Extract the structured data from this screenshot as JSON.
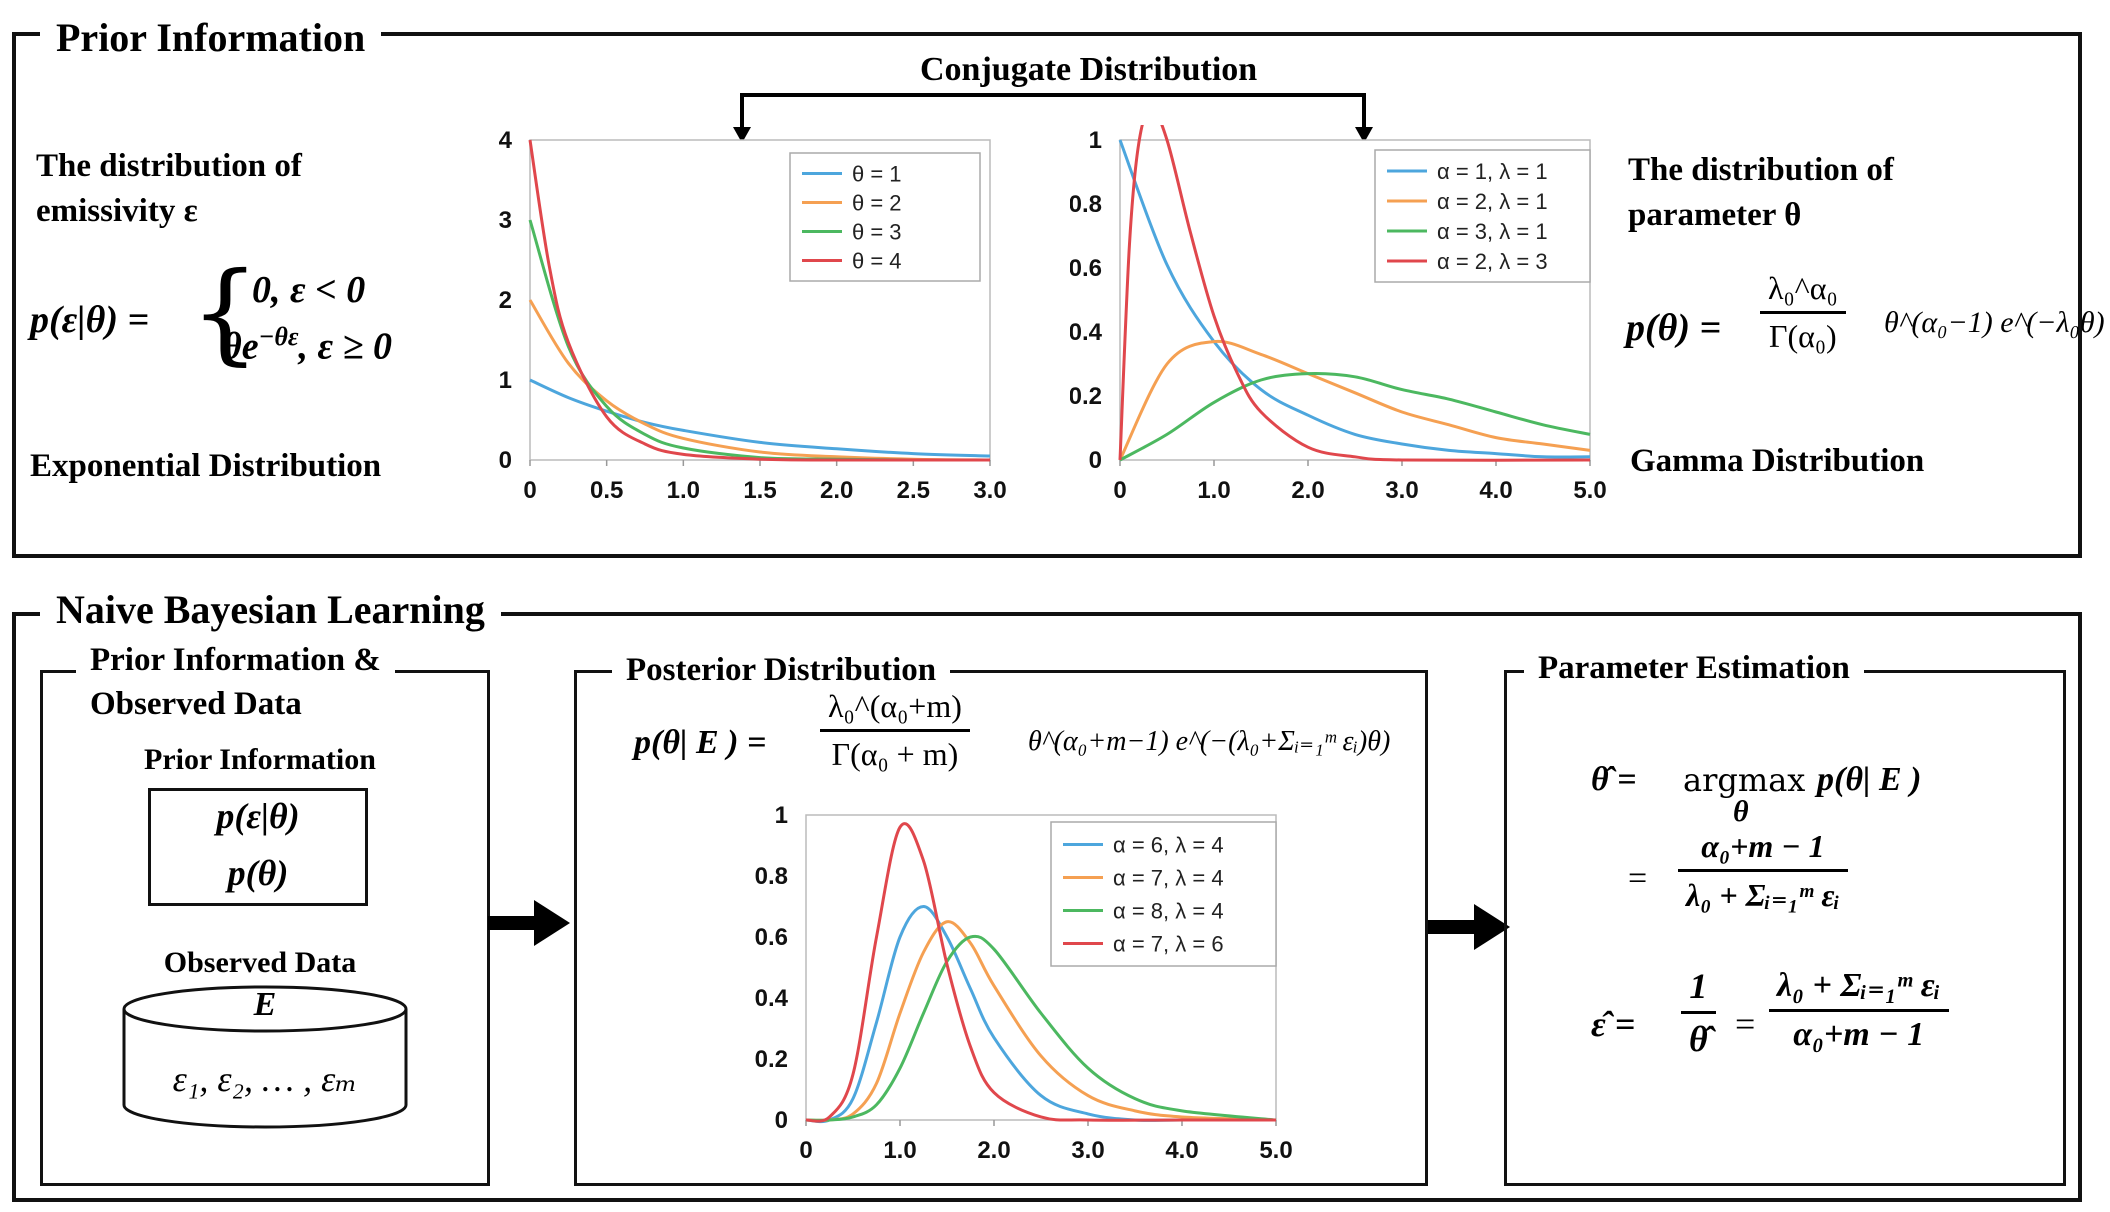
{
  "prior": {
    "title": "Prior Information",
    "conjugate_label": "Conjugate Distribution",
    "left_desc_line1": "The distribution of",
    "left_desc_line2": "emissivity ε",
    "left_formula_lhs": "p(ε|θ) =",
    "left_case1": "0, ε < 0",
    "left_case2": "θe",
    "left_case2_exp": "−θε",
    "left_case2_tail": ", ε ≥ 0",
    "left_dist_name": "Exponential Distribution",
    "right_desc_line1": "The distribution of",
    "right_desc_line2": "parameter θ",
    "right_formula_lhs": "p(θ) =",
    "right_formula_num": "λ₀^α₀",
    "right_formula_den": "Γ(α₀)",
    "right_formula_tail": "θ^(α₀−1) e^(−λ₀θ)",
    "right_dist_name": "Gamma Distribution"
  },
  "naive": {
    "title": "Naive Bayesian Learning",
    "box1_title_line1": "Prior Information &",
    "box1_title_line2": "Observed Data",
    "prior_info_label": "Prior Information",
    "prior_formula1": "p(ε|θ)",
    "prior_formula2": "p(θ)",
    "observed_label": "Observed Data",
    "db_label": "E",
    "db_content": "ε₁, ε₂, … , εₘ",
    "box2_title": "Posterior Distribution",
    "posterior_lhs": "p(θ| E ) =",
    "posterior_num": "λ₀^(α₀+m)",
    "posterior_den": "Γ(α₀ + m)",
    "posterior_tail": "θ^(α₀+m−1) e^(−(λ₀+Σᵢ₌₁ᵐ εᵢ)θ)",
    "box3_title": "Parameter Estimation",
    "est1_lhs": "θ̂ =",
    "est1_op": "argmax",
    "est1_sub": "θ",
    "est1_rhs": "p(θ| E )",
    "est2_eq": "=",
    "est2_num": "α₀+m − 1",
    "est2_den": "λ₀ + Σᵢ₌₁ᵐ εᵢ",
    "est3_lhs": "ε̂ =",
    "est3_frac1_num": "1",
    "est3_frac1_den": "θ̂",
    "est3_eq": "=",
    "est3_num": "λ₀ + Σᵢ₌₁ᵐ εᵢ",
    "est3_den": "α₀+m − 1"
  },
  "chart_data": [
    {
      "type": "line",
      "xticks": [
        "0",
        "0.5",
        "1.0",
        "1.5",
        "2.0",
        "2.5",
        "3.0"
      ],
      "yticks": [
        "0",
        "1",
        "2",
        "3",
        "4"
      ],
      "xlim": [
        0,
        3
      ],
      "ylim": [
        0,
        4
      ],
      "legend_position": "top-right",
      "series": [
        {
          "name": "θ = 1",
          "color": "#4da6dd",
          "x": [
            0,
            0.25,
            0.5,
            0.75,
            1,
            1.5,
            2,
            2.5,
            3
          ],
          "values": [
            1,
            0.78,
            0.61,
            0.47,
            0.37,
            0.22,
            0.14,
            0.08,
            0.05
          ]
        },
        {
          "name": "θ = 2",
          "color": "#f5a052",
          "x": [
            0,
            0.25,
            0.5,
            0.75,
            1,
            1.5,
            2,
            2.5,
            3
          ],
          "values": [
            2,
            1.21,
            0.74,
            0.45,
            0.27,
            0.1,
            0.04,
            0.01,
            0
          ]
        },
        {
          "name": "θ = 3",
          "color": "#4cb860",
          "x": [
            0,
            0.25,
            0.5,
            0.75,
            1,
            1.5,
            2,
            2.5,
            3
          ],
          "values": [
            3,
            1.42,
            0.67,
            0.32,
            0.15,
            0.03,
            0.01,
            0,
            0
          ]
        },
        {
          "name": "θ = 4",
          "color": "#e0474c",
          "x": [
            0,
            0.125,
            0.25,
            0.5,
            0.75,
            1,
            1.5,
            2,
            3
          ],
          "values": [
            4,
            2.43,
            1.47,
            0.54,
            0.2,
            0.07,
            0.01,
            0,
            0
          ]
        }
      ]
    },
    {
      "type": "line",
      "xticks": [
        "0",
        "1.0",
        "2.0",
        "3.0",
        "4.0",
        "5.0"
      ],
      "yticks": [
        "0",
        "0.2",
        "0.4",
        "0.6",
        "0.8",
        "1"
      ],
      "xlim": [
        0,
        5
      ],
      "ylim": [
        0,
        1
      ],
      "legend_position": "top-right",
      "series": [
        {
          "name": "α = 1, λ = 1",
          "color": "#4da6dd",
          "x": [
            0,
            0.5,
            1,
            1.5,
            2,
            2.5,
            3,
            3.5,
            4,
            4.5,
            5
          ],
          "values": [
            1,
            0.61,
            0.37,
            0.22,
            0.14,
            0.08,
            0.05,
            0.03,
            0.02,
            0.01,
            0.01
          ]
        },
        {
          "name": "α = 2, λ = 1",
          "color": "#f5a052",
          "x": [
            0,
            0.5,
            1,
            1.5,
            2,
            2.5,
            3,
            3.5,
            4,
            4.5,
            5
          ],
          "values": [
            0,
            0.3,
            0.37,
            0.33,
            0.27,
            0.21,
            0.15,
            0.11,
            0.07,
            0.05,
            0.03
          ]
        },
        {
          "name": "α = 3, λ = 1",
          "color": "#4cb860",
          "x": [
            0,
            0.5,
            1,
            1.5,
            2,
            2.5,
            3,
            3.5,
            4,
            4.5,
            5
          ],
          "values": [
            0,
            0.08,
            0.18,
            0.25,
            0.27,
            0.26,
            0.22,
            0.19,
            0.15,
            0.11,
            0.08
          ]
        },
        {
          "name": "α = 2, λ = 3",
          "color": "#e0474c",
          "x": [
            0,
            0.1,
            0.2,
            0.33,
            0.5,
            0.75,
            1,
            1.25,
            1.5,
            2,
            2.5,
            3,
            5
          ],
          "values": [
            0,
            0.67,
            0.99,
            1.1,
            1.0,
            0.71,
            0.45,
            0.27,
            0.15,
            0.04,
            0.01,
            0,
            0
          ]
        }
      ]
    },
    {
      "type": "line",
      "xticks": [
        "0",
        "1.0",
        "2.0",
        "3.0",
        "4.0",
        "5.0"
      ],
      "yticks": [
        "0",
        "0.2",
        "0.4",
        "0.6",
        "0.8",
        "1"
      ],
      "xlim": [
        0,
        5
      ],
      "ylim": [
        0,
        1
      ],
      "legend_position": "top-right",
      "series": [
        {
          "name": "α = 6, λ = 4",
          "color": "#4da6dd",
          "x": [
            0,
            0.25,
            0.5,
            0.75,
            1,
            1.25,
            1.5,
            1.75,
            2,
            2.5,
            3,
            3.5,
            4,
            5
          ],
          "values": [
            0,
            0.0,
            0.07,
            0.32,
            0.6,
            0.7,
            0.6,
            0.43,
            0.27,
            0.08,
            0.02,
            0.0,
            0,
            0
          ]
        },
        {
          "name": "α = 7, λ = 4",
          "color": "#f5a052",
          "x": [
            0,
            0.25,
            0.5,
            0.75,
            1,
            1.25,
            1.5,
            1.75,
            2,
            2.5,
            3,
            3.5,
            4,
            5
          ],
          "values": [
            0,
            0,
            0.02,
            0.12,
            0.35,
            0.55,
            0.65,
            0.58,
            0.44,
            0.21,
            0.08,
            0.03,
            0.01,
            0
          ]
        },
        {
          "name": "α = 8, λ = 4",
          "color": "#4cb860",
          "x": [
            0,
            0.25,
            0.5,
            0.75,
            1,
            1.25,
            1.5,
            1.75,
            2,
            2.5,
            3,
            3.5,
            4,
            5
          ],
          "values": [
            0,
            0,
            0.01,
            0.05,
            0.17,
            0.35,
            0.52,
            0.6,
            0.56,
            0.35,
            0.17,
            0.07,
            0.03,
            0
          ]
        },
        {
          "name": "α = 7, λ = 6",
          "color": "#e0474c",
          "x": [
            0,
            0.25,
            0.5,
            0.75,
            1,
            1.25,
            1.5,
            1.75,
            2,
            2.5,
            3,
            4,
            5
          ],
          "values": [
            0,
            0.01,
            0.15,
            0.6,
            0.96,
            0.85,
            0.51,
            0.24,
            0.09,
            0.01,
            0,
            0,
            0
          ]
        }
      ]
    }
  ]
}
